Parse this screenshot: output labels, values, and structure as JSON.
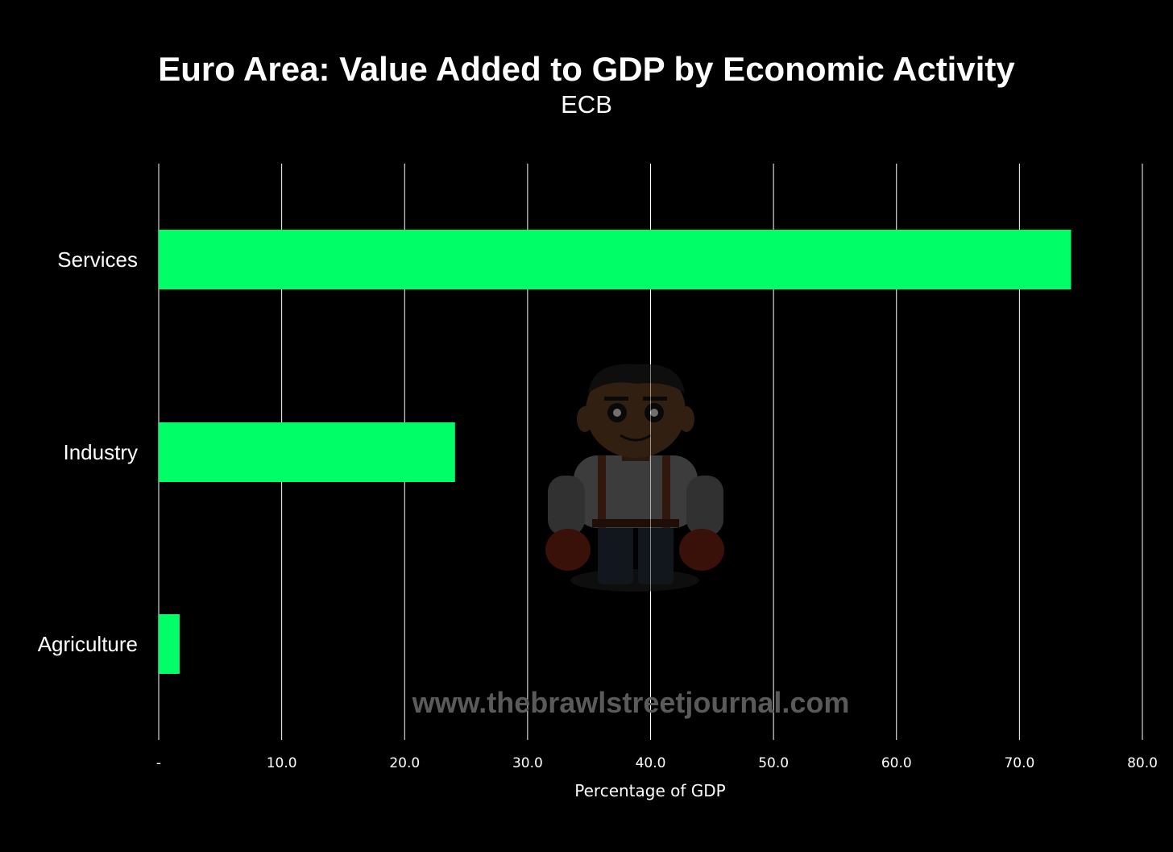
{
  "chart_data": {
    "type": "bar",
    "orientation": "horizontal",
    "title": "Euro Area: Value Added to GDP by Economic Activity",
    "subtitle": "ECB",
    "categories": [
      "Services",
      "Industry",
      "Agriculture"
    ],
    "values": [
      74.2,
      24.1,
      1.7
    ],
    "xlabel": "Percentage of GDP",
    "ylabel": "",
    "xlim": [
      0,
      80
    ],
    "x_ticks": [
      0,
      10,
      20,
      30,
      40,
      50,
      60,
      70,
      80
    ],
    "x_tick_labels": [
      "-",
      "10.0",
      "20.0",
      "30.0",
      "40.0",
      "50.0",
      "60.0",
      "70.0",
      "80.0"
    ],
    "grid": "vertical",
    "legend": "none",
    "colors": {
      "bar": "#00ff66",
      "background": "#000000",
      "grid": "#ffffff",
      "text": "#ffffff"
    }
  },
  "watermark": {
    "text": "www.thebrawlstreetjournal.com",
    "logo": "mascot-logo"
  }
}
